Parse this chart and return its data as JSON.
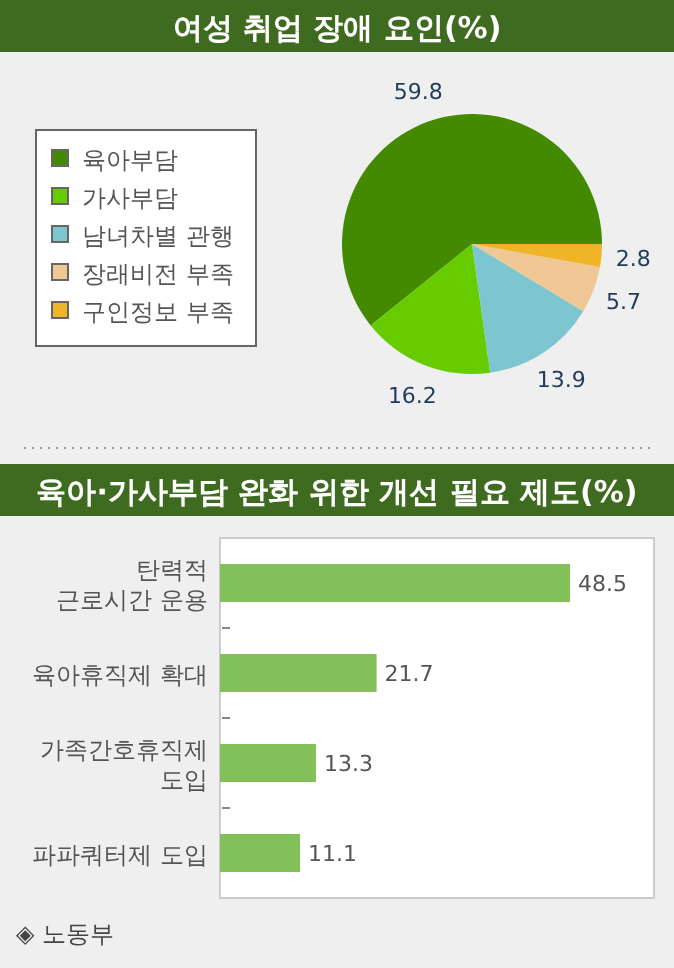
{
  "chart_data": [
    {
      "type": "pie",
      "title": "여성 취업 장애 요인(%)",
      "categories": [
        "육아부담",
        "가사부담",
        "남녀차별 관행",
        "장래비전 부족",
        "구인정보 부족"
      ],
      "values": [
        59.8,
        16.2,
        13.9,
        5.7,
        2.8
      ],
      "colors": [
        "#448a00",
        "#66cc00",
        "#7ec6cf",
        "#f0c896",
        "#f0b428"
      ],
      "data_labels": true,
      "legend": "left"
    },
    {
      "type": "bar",
      "orientation": "horizontal",
      "title": "육아·가사부담 완화 위한 개선 필요 제도(%)",
      "categories": [
        "탄력적\n근로시간 운용",
        "육아휴직제 확대",
        "가족간호휴직제\n도입",
        "파파쿼터제 도입"
      ],
      "values": [
        48.5,
        21.7,
        13.3,
        11.1
      ],
      "color": "#84c05a",
      "data_labels": true,
      "annotations": [
        "◈ 노동부"
      ]
    }
  ]
}
